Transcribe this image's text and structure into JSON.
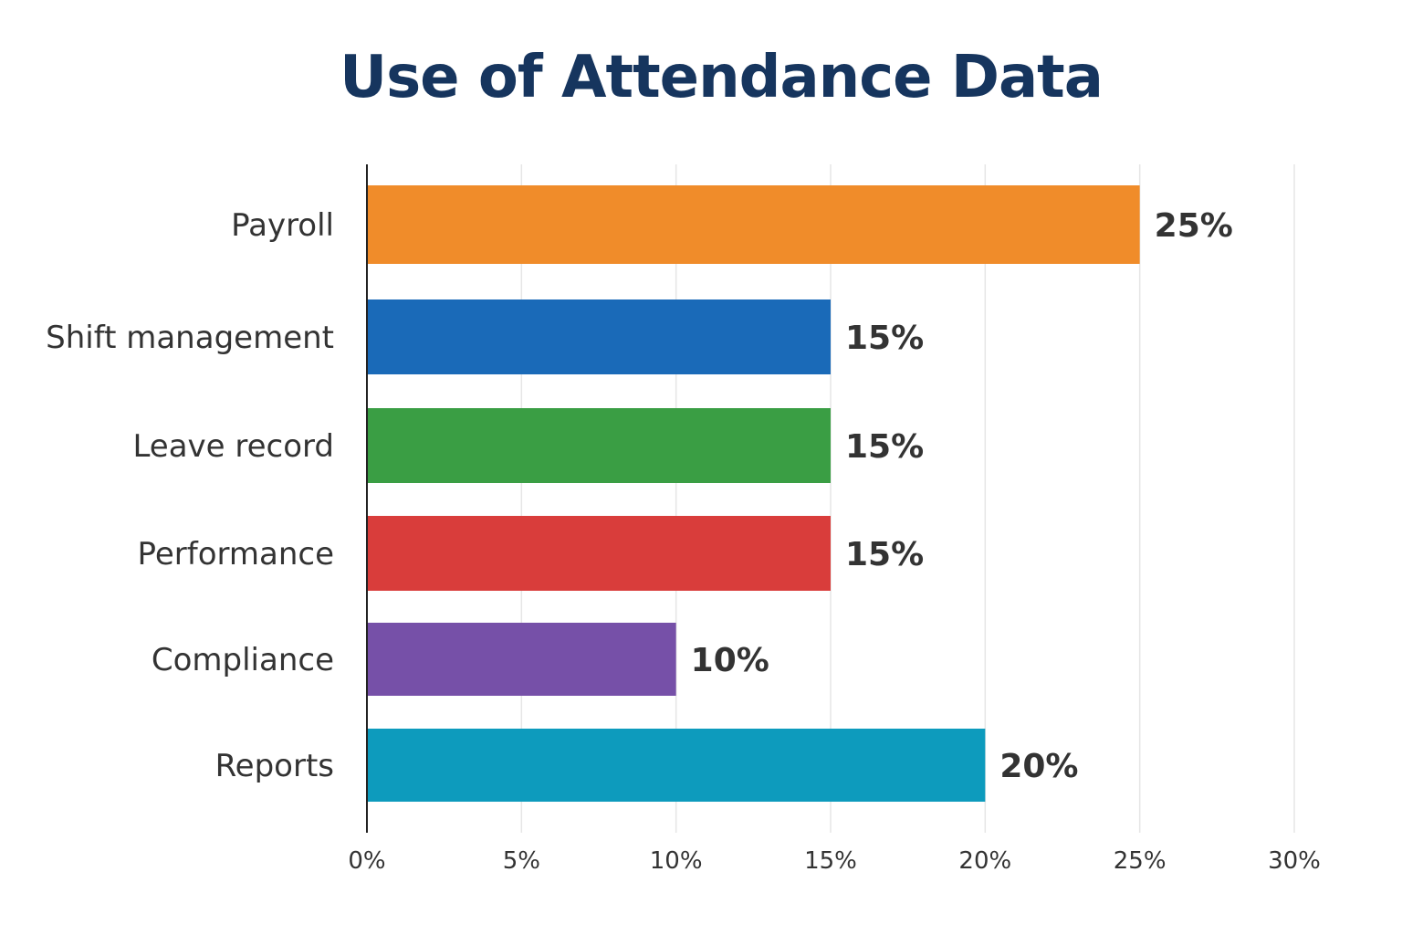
{
  "chart_data": {
    "type": "bar",
    "orientation": "horizontal",
    "title": "Use of Attendance Data",
    "xlabel": "",
    "ylabel": "",
    "categories": [
      "Payroll",
      "Shift management",
      "Leave record",
      "Performance",
      "Compliance",
      "Reports"
    ],
    "values": [
      25,
      15,
      15,
      15,
      10,
      20
    ],
    "value_labels": [
      "25%",
      "15%",
      "15%",
      "15%",
      "10%",
      "20%"
    ],
    "colors": [
      "#f08c2a",
      "#1a6ab8",
      "#3a9e44",
      "#d93d3b",
      "#7650a8",
      "#0d9bbd"
    ],
    "xlim": [
      0,
      30
    ],
    "x_ticks": [
      0,
      5,
      10,
      15,
      20,
      25,
      30
    ],
    "x_tick_labels": [
      "0%",
      "5%",
      "10%",
      "15%",
      "20%",
      "25%",
      "30%"
    ],
    "grid": "vertical",
    "legend": "none"
  }
}
